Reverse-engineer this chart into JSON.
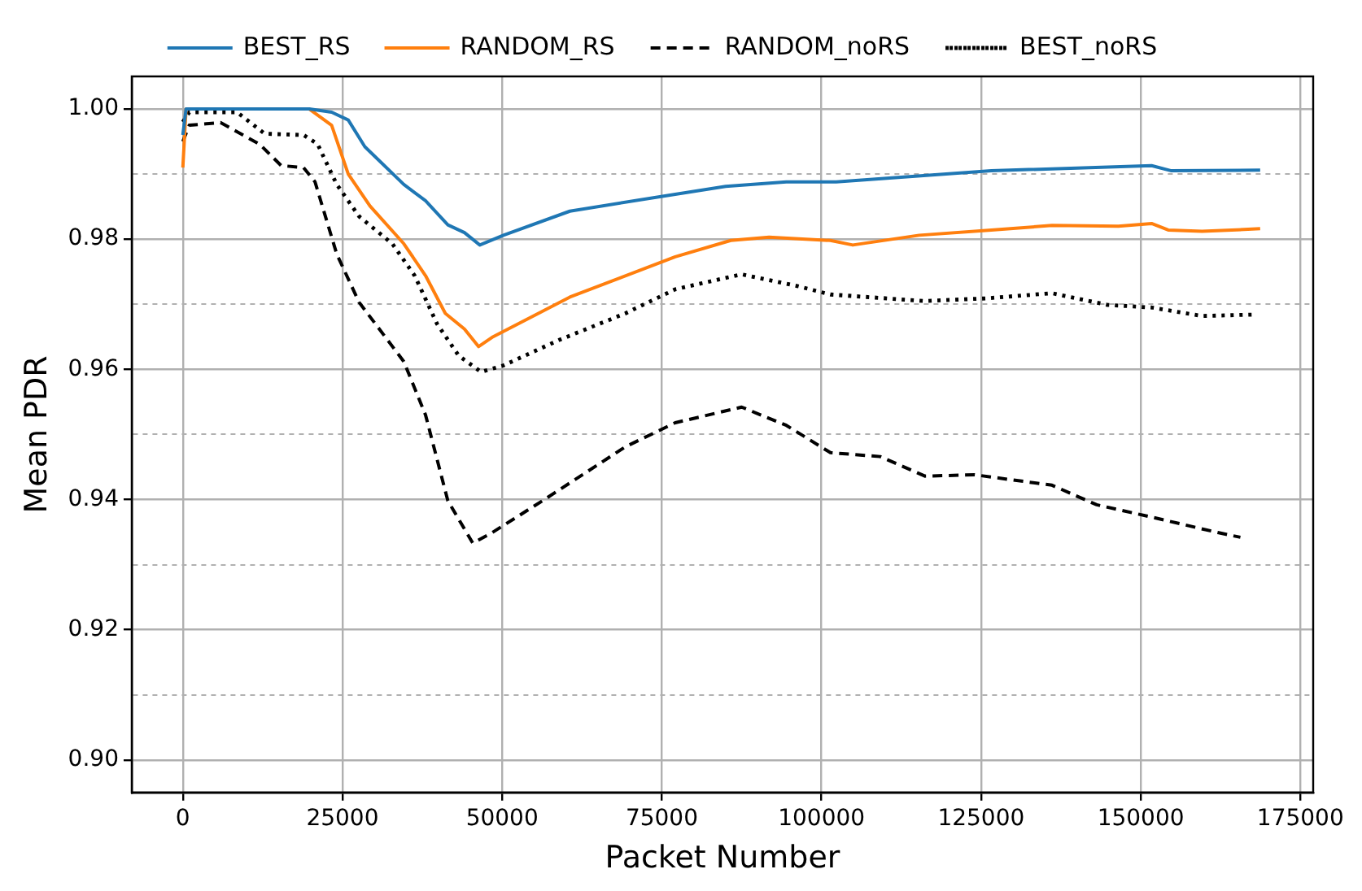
{
  "chart_data": {
    "type": "line",
    "xlabel": "Packet Number",
    "ylabel": "Mean PDR",
    "xlim": [
      -8000,
      177000
    ],
    "xticks": [
      0,
      25000,
      50000,
      75000,
      100000,
      125000,
      150000,
      175000
    ],
    "ylim": [
      0.895,
      1.005
    ],
    "yticks": [
      {
        "value": 0.9,
        "label": "0.90"
      },
      {
        "value": 0.91,
        "label": null
      },
      {
        "value": 0.92,
        "label": "0.92"
      },
      {
        "value": 0.93,
        "label": null
      },
      {
        "value": 0.94,
        "label": "0.94"
      },
      {
        "value": 0.95,
        "label": null
      },
      {
        "value": 0.96,
        "label": "0.96"
      },
      {
        "value": 0.97,
        "label": null
      },
      {
        "value": 0.98,
        "label": "0.98"
      },
      {
        "value": 0.99,
        "label": null
      },
      {
        "value": 1.0,
        "label": "1.00"
      }
    ],
    "grid": true,
    "legend": "top",
    "marker": "none",
    "series": [
      {
        "name": "BEST_RS",
        "color": "#1f77b4",
        "line_style": "solid",
        "x": [
          0,
          500,
          19800,
          23300,
          25900,
          28500,
          34600,
          38000,
          41500,
          44100,
          46500,
          50200,
          60600,
          77100,
          85000,
          94500,
          102300,
          126600,
          151700,
          154800,
          168700
        ],
        "values": [
          0.996,
          1.0,
          1.0,
          0.9995,
          0.9983,
          0.9942,
          0.9884,
          0.9859,
          0.9822,
          0.981,
          0.9791,
          0.9806,
          0.9843,
          0.9869,
          0.9881,
          0.9888,
          0.9888,
          0.9905,
          0.9913,
          0.9905,
          0.9906
        ]
      },
      {
        "name": "RANDOM_RS",
        "color": "#ff7f0e",
        "line_style": "solid",
        "x": [
          0,
          500,
          19800,
          23300,
          25900,
          29300,
          34600,
          38000,
          41100,
          44100,
          46300,
          48400,
          60600,
          77100,
          85800,
          91800,
          101400,
          104900,
          115300,
          126600,
          136100,
          146500,
          151700,
          154300,
          159600,
          168700
        ],
        "values": [
          0.991,
          1.0,
          1.0,
          0.9975,
          0.99,
          0.9851,
          0.9793,
          0.9744,
          0.9686,
          0.9662,
          0.9635,
          0.9649,
          0.9711,
          0.9773,
          0.9798,
          0.9803,
          0.9798,
          0.9791,
          0.9806,
          0.9814,
          0.9821,
          0.982,
          0.9824,
          0.9814,
          0.9812,
          0.9816
        ]
      },
      {
        "name": "RANDOM_noRS",
        "color": "#000000",
        "line_style": "dashed",
        "x": [
          0,
          1000,
          5900,
          12000,
          15400,
          18900,
          20700,
          24100,
          27600,
          34600,
          38000,
          41500,
          45400,
          48400,
          56300,
          69300,
          77100,
          87500,
          94500,
          101400,
          109200,
          116200,
          124000,
          136100,
          143100,
          151700,
          162200,
          165600
        ],
        "values": [
          0.995,
          0.9975,
          0.9979,
          0.9946,
          0.9913,
          0.991,
          0.9888,
          0.9777,
          0.9703,
          0.9612,
          0.953,
          0.9398,
          0.9333,
          0.9349,
          0.9398,
          0.9481,
          0.9518,
          0.9542,
          0.9514,
          0.9472,
          0.9466,
          0.9436,
          0.9438,
          0.9422,
          0.9392,
          0.9373,
          0.9349,
          0.9342
        ]
      },
      {
        "name": "BEST_noRS",
        "color": "#000000",
        "line_style": "dotted",
        "x": [
          0,
          1000,
          8500,
          12800,
          18900,
          21100,
          24100,
          27600,
          32800,
          36300,
          39800,
          43200,
          46700,
          50200,
          58900,
          69300,
          77100,
          87500,
          96200,
          101400,
          116200,
          125700,
          136100,
          144800,
          151700,
          159600,
          167400
        ],
        "values": [
          0.998,
          0.9995,
          0.9995,
          0.9962,
          0.996,
          0.9946,
          0.9884,
          0.9835,
          0.9793,
          0.9744,
          0.967,
          0.9621,
          0.9596,
          0.9606,
          0.9645,
          0.9686,
          0.9723,
          0.9746,
          0.9728,
          0.9715,
          0.9705,
          0.9709,
          0.9717,
          0.9699,
          0.9695,
          0.9682,
          0.9684
        ]
      }
    ]
  }
}
